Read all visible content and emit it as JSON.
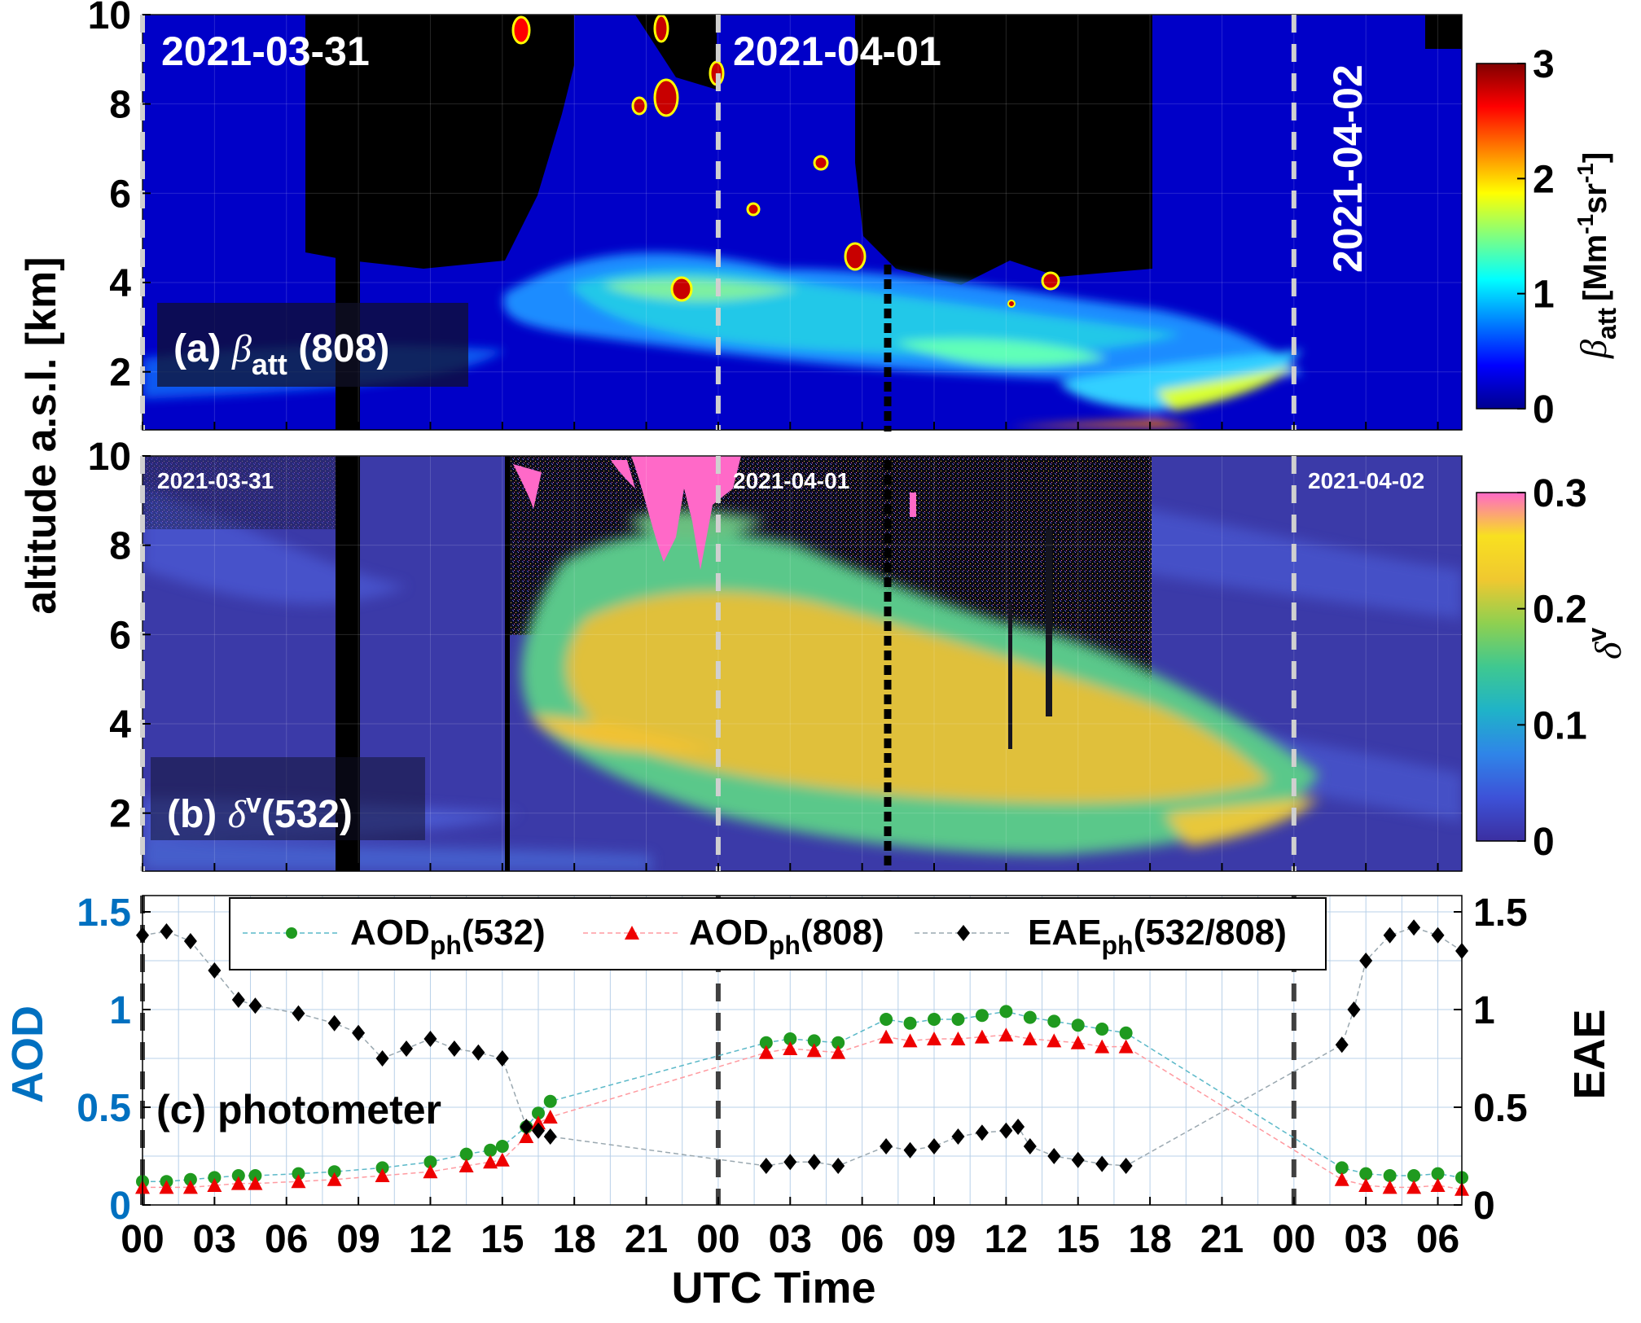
{
  "figure": {
    "shared_ylabel": "altitude a.s.l. [km]",
    "xlabel": "UTC Time",
    "x_tick_labels": [
      "00",
      "03",
      "06",
      "09",
      "12",
      "15",
      "18",
      "21",
      "00",
      "03",
      "06",
      "09",
      "12",
      "15",
      "18",
      "21",
      "00",
      "03",
      "06"
    ]
  },
  "panels": {
    "a": {
      "label_prefix": "(a) ",
      "label_symbol": "β",
      "label_sub": "att",
      "label_suffix": " (808)",
      "dates": [
        "2021-03-31",
        "2021-04-01",
        "2021-04-02"
      ],
      "y_ticks": [
        "2",
        "4",
        "6",
        "8",
        "10"
      ],
      "colorbar": {
        "ticks": [
          "0",
          "1",
          "2",
          "3"
        ],
        "label_symbol": "β",
        "label_sub": "att",
        "label_unit_a": "[Mm",
        "label_sup1": "-1",
        "label_unit_b": "sr",
        "label_sup2": "-1",
        "label_unit_c": "]",
        "colors": [
          "#00008f",
          "#0000ff",
          "#0080ff",
          "#00ffff",
          "#80ff80",
          "#ffff00",
          "#ff8000",
          "#ff0000",
          "#800000"
        ]
      }
    },
    "b": {
      "label_prefix": "(b) ",
      "label_symbol": "δ",
      "label_sup": "v",
      "label_suffix": "(532)",
      "dates": [
        "2021-03-31",
        "2021-04-01",
        "2021-04-02"
      ],
      "y_ticks": [
        "2",
        "4",
        "6",
        "8",
        "10"
      ],
      "colorbar": {
        "ticks": [
          "0",
          "0.1",
          "0.2",
          "0.3"
        ],
        "label_symbol": "δ",
        "label_sup": "v",
        "colors": [
          "#3b2fa0",
          "#3d52d8",
          "#2f85e8",
          "#1fb3c8",
          "#3fc890",
          "#8fd050",
          "#f0c830",
          "#f8e020",
          "#ff69c8"
        ]
      }
    },
    "c": {
      "label": "(c) photometer",
      "ylabel_left": "AOD",
      "ylabel_right": "EAE",
      "y_ticks_left": [
        "0",
        "0.5",
        "1",
        "1.5"
      ],
      "y_ticks_right": [
        "0",
        "0.5",
        "1",
        "1.5"
      ],
      "legend": [
        {
          "base": "AOD",
          "sub": "ph",
          "tail": "(532)",
          "color": "#1f9a1f",
          "marker": "circle"
        },
        {
          "base": "AOD",
          "sub": "ph",
          "tail": "(808)",
          "color": "#ee0000",
          "marker": "triangle"
        },
        {
          "base": "EAE",
          "sub": "ph",
          "tail": "(532/808)",
          "color": "#000000",
          "marker": "diamond"
        }
      ]
    }
  },
  "chart_data": [
    {
      "type": "heatmap",
      "title": "(a) βatt (808)",
      "ylabel": "altitude a.s.l. [km]",
      "ylim": [
        0.7,
        10
      ],
      "xlim_hours": [
        0,
        55
      ],
      "colorbar_label": "βatt [Mm-1sr-1]",
      "colorbar_range": [
        0,
        3
      ]
    },
    {
      "type": "heatmap",
      "title": "(b) δv(532)",
      "ylabel": "altitude a.s.l. [km]",
      "ylim": [
        0.7,
        10
      ],
      "xlim_hours": [
        0,
        55
      ],
      "colorbar_label": "δv",
      "colorbar_range": [
        0,
        0.3
      ]
    },
    {
      "type": "scatter",
      "title": "(c) photometer",
      "xlabel": "UTC Time",
      "ylabel": "AOD",
      "ylabel_right": "EAE",
      "xlim_hours": [
        0,
        55
      ],
      "ylim": [
        0,
        1.5
      ],
      "ylim_right": [
        0,
        1.5
      ],
      "series": [
        {
          "name": "AODph(532)",
          "axis": "left",
          "x": [
            0,
            1,
            2,
            3,
            4,
            4.7,
            6.5,
            8,
            10,
            12,
            13.5,
            14.5,
            15,
            16,
            16.5,
            17,
            26,
            27,
            28,
            29,
            31,
            32,
            33,
            34,
            35,
            36,
            37,
            38,
            39,
            40,
            41,
            50,
            51,
            52,
            53,
            54,
            55
          ],
          "y": [
            0.12,
            0.12,
            0.13,
            0.14,
            0.15,
            0.15,
            0.16,
            0.17,
            0.19,
            0.22,
            0.26,
            0.28,
            0.3,
            0.4,
            0.47,
            0.53,
            0.83,
            0.85,
            0.84,
            0.83,
            0.95,
            0.93,
            0.95,
            0.95,
            0.97,
            0.99,
            0.96,
            0.94,
            0.92,
            0.9,
            0.88,
            0.19,
            0.16,
            0.15,
            0.15,
            0.16,
            0.14
          ]
        },
        {
          "name": "AODph(808)",
          "axis": "left",
          "x": [
            0,
            1,
            2,
            3,
            4,
            4.7,
            6.5,
            8,
            10,
            12,
            13.5,
            14.5,
            15,
            16,
            16.5,
            17,
            26,
            27,
            28,
            29,
            31,
            32,
            33,
            34,
            35,
            36,
            37,
            38,
            39,
            40,
            41,
            50,
            51,
            52,
            53,
            54,
            55
          ],
          "y": [
            0.09,
            0.09,
            0.09,
            0.1,
            0.11,
            0.11,
            0.12,
            0.13,
            0.15,
            0.17,
            0.2,
            0.22,
            0.23,
            0.35,
            0.42,
            0.45,
            0.78,
            0.8,
            0.79,
            0.78,
            0.86,
            0.84,
            0.85,
            0.85,
            0.86,
            0.87,
            0.85,
            0.84,
            0.83,
            0.81,
            0.81,
            0.13,
            0.1,
            0.09,
            0.09,
            0.1,
            0.08
          ]
        },
        {
          "name": "EAEph(532/808)",
          "axis": "right",
          "x": [
            0,
            1,
            2,
            3,
            4,
            4.7,
            6.5,
            8,
            9,
            10,
            11,
            12,
            13,
            14,
            15,
            16,
            16.5,
            17,
            26,
            27,
            28,
            29,
            31,
            32,
            33,
            34,
            35,
            36,
            36.5,
            37,
            38,
            39,
            40,
            41,
            50,
            50.5,
            51,
            52,
            53,
            54,
            55
          ],
          "y": [
            1.38,
            1.4,
            1.35,
            1.2,
            1.05,
            1.02,
            0.98,
            0.93,
            0.88,
            0.75,
            0.8,
            0.85,
            0.8,
            0.78,
            0.75,
            0.4,
            0.38,
            0.35,
            0.2,
            0.22,
            0.22,
            0.2,
            0.3,
            0.28,
            0.3,
            0.35,
            0.37,
            0.38,
            0.4,
            0.3,
            0.25,
            0.23,
            0.21,
            0.2,
            0.82,
            1.0,
            1.25,
            1.38,
            1.42,
            1.38,
            1.3
          ]
        }
      ]
    }
  ]
}
